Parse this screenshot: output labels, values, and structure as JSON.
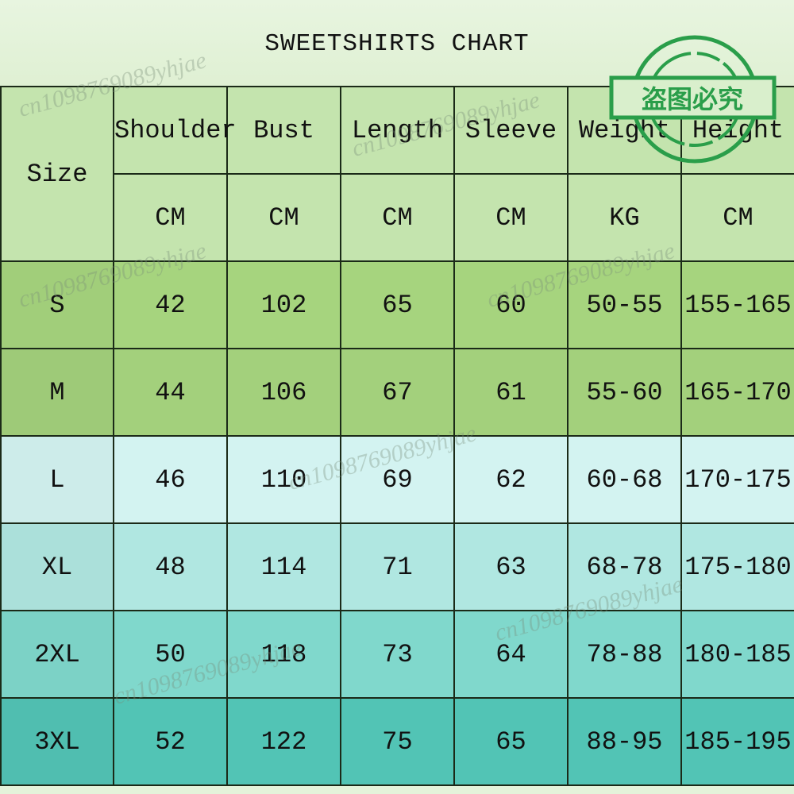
{
  "title": "SWEETSHIRTS CHART",
  "header": {
    "size_label": "Size",
    "columns": [
      {
        "name": "Shoulder",
        "unit": "CM"
      },
      {
        "name": "Bust",
        "unit": "CM"
      },
      {
        "name": "Length",
        "unit": "CM"
      },
      {
        "name": "Sleeve",
        "unit": "CM"
      },
      {
        "name": "Weight",
        "unit": "KG"
      },
      {
        "name": "Height",
        "unit": "CM"
      }
    ]
  },
  "rows": [
    {
      "size": "S",
      "values": [
        "42",
        "102",
        "65",
        "60",
        "50-55",
        "155-165"
      ],
      "color": "#a6d47e"
    },
    {
      "size": "M",
      "values": [
        "44",
        "106",
        "67",
        "61",
        "55-60",
        "165-170"
      ],
      "color": "#a3d07c"
    },
    {
      "size": "L",
      "values": [
        "46",
        "110",
        "69",
        "62",
        "60-68",
        "170-175"
      ],
      "color": "#d3f3f1"
    },
    {
      "size": "XL",
      "values": [
        "48",
        "114",
        "71",
        "63",
        "68-78",
        "175-180"
      ],
      "color": "#b0e7e1"
    },
    {
      "size": "2XL",
      "values": [
        "50",
        "118",
        "73",
        "64",
        "78-88",
        "180-185"
      ],
      "color": "#80d8cc"
    },
    {
      "size": "3XL",
      "values": [
        "52",
        "122",
        "75",
        "65",
        "88-95",
        "185-195"
      ],
      "color": "#52c4b5"
    }
  ],
  "watermark": "cn1098769089yhjae",
  "stamp_text": "盗图必究",
  "stamp_color": "#2a9e4a"
}
